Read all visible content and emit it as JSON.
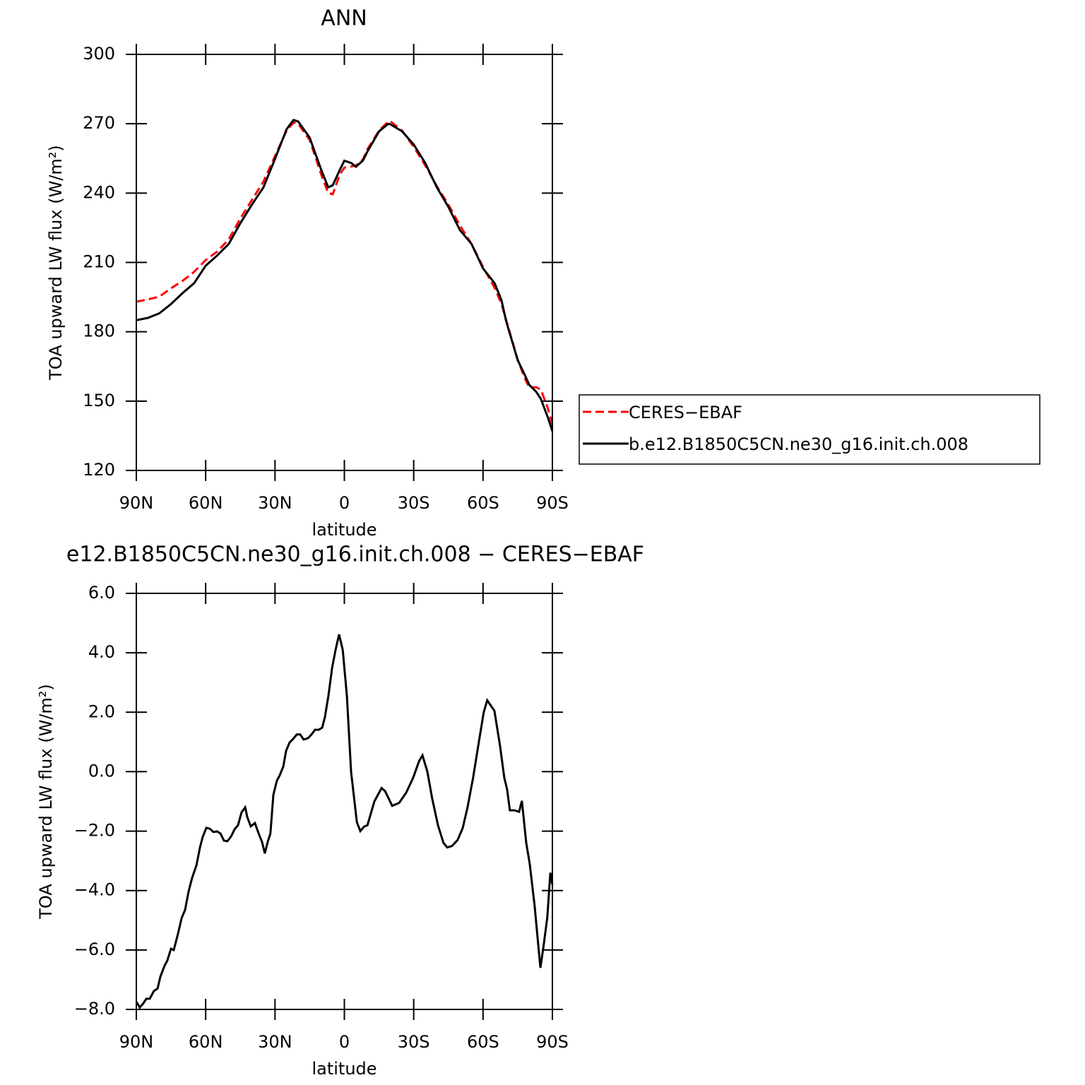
{
  "chart_data": [
    {
      "type": "line",
      "title": "ANN",
      "xlabel": "latitude",
      "ylabel": "TOA upward LW flux (W/m²)",
      "x": [
        90,
        85,
        80,
        75,
        70,
        65,
        60,
        55,
        50,
        45,
        40,
        35,
        30,
        25,
        22,
        20,
        15,
        10,
        7,
        5,
        2,
        0,
        -3,
        -5,
        -8,
        -10,
        -15,
        -19,
        -20,
        -25,
        -30,
        -35,
        -40,
        -45,
        -50,
        -55,
        -60,
        -65,
        -68,
        -70,
        -75,
        -78,
        -80,
        -83,
        -85,
        -88,
        -90
      ],
      "series": [
        {
          "name": "CERES−EBAF",
          "color": "#ff0000",
          "dash": "dashed",
          "values": [
            193,
            194,
            195.2,
            198.8,
            202,
            205.9,
            211,
            214.7,
            220,
            229,
            237,
            245,
            256,
            267,
            270.5,
            270,
            263,
            248,
            240,
            239.5,
            248,
            251,
            251.5,
            252,
            254.5,
            259,
            267,
            271,
            271,
            267,
            260,
            252,
            243,
            235,
            226,
            218,
            208,
            199,
            192,
            185,
            168,
            160,
            156,
            156,
            155,
            147,
            140
          ]
        },
        {
          "name": "b.e12.B1850C5CN.ne30_g16.init.ch.008",
          "color": "#000000",
          "dash": "solid",
          "values": [
            185,
            186,
            188,
            192,
            196.7,
            201,
            208.6,
            213,
            218,
            227,
            235,
            242.5,
            254.8,
            267.6,
            271.6,
            271,
            264,
            250,
            242.5,
            243.4,
            250,
            254,
            253,
            251.4,
            254,
            258,
            266.7,
            270,
            269.7,
            266.7,
            261,
            253,
            242.5,
            234,
            224,
            218,
            207.4,
            201,
            193.6,
            184.5,
            167.7,
            161.5,
            157,
            154,
            151,
            143,
            137
          ]
        }
      ],
      "xlim": [
        90,
        -90
      ],
      "xticks": [
        {
          "value": 90,
          "label": "90N"
        },
        {
          "value": 60,
          "label": "60N"
        },
        {
          "value": 30,
          "label": "30N"
        },
        0,
        {
          "value": -30,
          "label": "30S"
        },
        {
          "value": -60,
          "label": "60S"
        },
        {
          "value": -90,
          "label": "90S"
        }
      ],
      "ylim": [
        120,
        300
      ],
      "yticks": [
        120,
        150,
        180,
        210,
        240,
        270,
        300
      ],
      "legend": "right",
      "grid": false
    },
    {
      "type": "line",
      "title": "e12.B1850C5CN.ne30_g16.init.ch.008 − CERES−EBAF",
      "xlabel": "latitude",
      "ylabel": "TOA upward LW flux (W/m²)",
      "x": [
        90,
        88.5,
        87,
        85.7,
        84.2,
        82.4,
        80.8,
        79.6,
        77.8,
        76.6,
        75,
        73.8,
        72,
        70.4,
        68.9,
        67.4,
        65.9,
        64,
        62.5,
        61.3,
        59.7,
        58.2,
        56.7,
        55.1,
        53.6,
        52.1,
        50.6,
        49,
        47.5,
        46,
        44.5,
        42.9,
        42,
        40.5,
        38.7,
        37.1,
        35.6,
        34.4,
        33.2,
        32,
        30.7,
        29.2,
        28,
        26.4,
        25.2,
        23.7,
        22.2,
        20.6,
        19.1,
        17.6,
        15.7,
        14.2,
        12.7,
        11.1,
        9.6,
        8.4,
        6.9,
        5.3,
        3.8,
        2.3,
        0.7,
        -1.1,
        -2.9,
        -5.4,
        -6.9,
        -8.5,
        -10,
        -13,
        -16.1,
        -17.6,
        -20.7,
        -23.7,
        -26.8,
        -29.8,
        -32.3,
        -33.8,
        -35.9,
        -38,
        -40.5,
        -42.9,
        -44.5,
        -46.6,
        -49,
        -51.2,
        -53.3,
        -55.7,
        -58.2,
        -60.3,
        -61.8,
        -64.9,
        -67.3,
        -69.2,
        -70.4,
        -71.6,
        -73.5,
        -75.6,
        -76.8,
        -78.7,
        -80.2,
        -82.3,
        -84.8,
        -86.3,
        -87.8,
        -89.1,
        -90
      ],
      "series": [
        {
          "color": "#000000",
          "dash": "solid",
          "values": [
            -7.74,
            -7.93,
            -7.8,
            -7.64,
            -7.64,
            -7.38,
            -7.3,
            -6.9,
            -6.53,
            -6.36,
            -5.96,
            -6.0,
            -5.46,
            -4.93,
            -4.65,
            -4.03,
            -3.58,
            -3.15,
            -2.56,
            -2.2,
            -1.89,
            -1.92,
            -2.03,
            -2.01,
            -2.08,
            -2.32,
            -2.34,
            -2.18,
            -1.94,
            -1.8,
            -1.37,
            -1.2,
            -1.53,
            -1.84,
            -1.73,
            -2.08,
            -2.37,
            -2.75,
            -2.37,
            -2.08,
            -0.78,
            -0.3,
            -0.13,
            0.18,
            0.7,
            0.98,
            1.1,
            1.25,
            1.25,
            1.08,
            1.13,
            1.25,
            1.41,
            1.41,
            1.48,
            1.84,
            2.55,
            3.5,
            4.1,
            4.62,
            4.1,
            2.55,
            0.0,
            -1.7,
            -2.0,
            -1.85,
            -1.8,
            -1.0,
            -0.55,
            -0.65,
            -1.15,
            -1.05,
            -0.7,
            -0.2,
            0.35,
            0.55,
            0.0,
            -0.9,
            -1.8,
            -2.4,
            -2.55,
            -2.5,
            -2.3,
            -1.9,
            -1.2,
            -0.2,
            1.0,
            2.0,
            2.4,
            2.05,
            0.9,
            -0.2,
            -0.6,
            -1.3,
            -1.3,
            -1.35,
            -0.98,
            -2.4,
            -3.1,
            -4.5,
            -6.6,
            -5.8,
            -4.9,
            -3.4,
            -3.8
          ]
        }
      ],
      "xlim": [
        90,
        -90
      ],
      "xticks": [
        {
          "value": 90,
          "label": "90N"
        },
        {
          "value": 60,
          "label": "60N"
        },
        {
          "value": 30,
          "label": "30N"
        },
        0,
        {
          "value": -30,
          "label": "30S"
        },
        {
          "value": -60,
          "label": "60S"
        },
        {
          "value": -90,
          "label": "90S"
        }
      ],
      "ylim": [
        -8,
        6
      ],
      "yticks": [
        {
          "value": -8,
          "label": "−8.0"
        },
        {
          "value": -6,
          "label": "−6.0"
        },
        {
          "value": -4,
          "label": "−4.0"
        },
        {
          "value": -2,
          "label": "−2.0"
        },
        {
          "value": 0,
          "label": "0.0"
        },
        {
          "value": 2,
          "label": "2.0"
        },
        {
          "value": 4,
          "label": "4.0"
        },
        {
          "value": 6,
          "label": "6.0"
        }
      ],
      "grid": false
    }
  ]
}
